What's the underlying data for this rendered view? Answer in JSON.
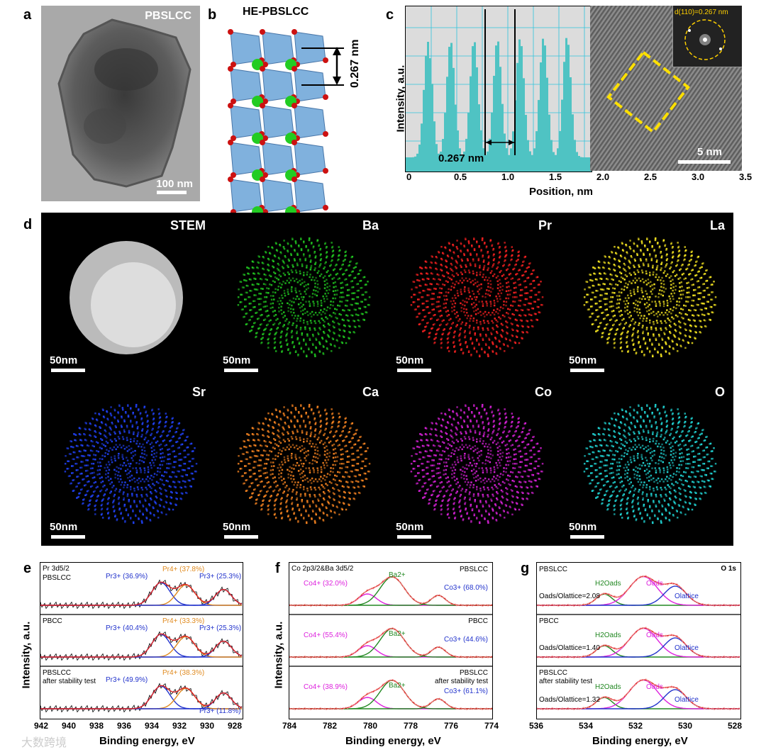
{
  "panels": {
    "a": {
      "label": "a",
      "sample": "PBSLCC",
      "scalebar": "100 nm"
    },
    "b": {
      "label": "b",
      "title": "HE-PBSLCC",
      "spacing": "0.267 nm"
    },
    "c": {
      "label": "c",
      "ylabel": "Intensity, a.u.",
      "xlabel": "Position, nm",
      "spacing": "0.267 nm",
      "scalebar": "5 nm",
      "fft": "d(110)=0.267 nm",
      "xticks": [
        "0",
        "0.5",
        "1.0",
        "1.5",
        "2.0",
        "2.5",
        "3.0",
        "3.5"
      ]
    },
    "d": {
      "label": "d",
      "tiles": [
        {
          "name": "STEM",
          "bar": "50nm"
        },
        {
          "name": "Ba",
          "bar": "50nm"
        },
        {
          "name": "Pr",
          "bar": "50nm"
        },
        {
          "name": "La",
          "bar": "50nm"
        },
        {
          "name": "Sr",
          "bar": "50nm"
        },
        {
          "name": "Ca",
          "bar": "50nm"
        },
        {
          "name": "Co",
          "bar": "50nm"
        },
        {
          "name": "O",
          "bar": "50nm"
        }
      ]
    },
    "e": {
      "label": "e",
      "ylabel": "Intensity, a.u.",
      "xlabel": "Binding energy, eV",
      "core": "Pr 3d5/2",
      "xticks": [
        "942",
        "940",
        "938",
        "936",
        "934",
        "932",
        "930",
        "928"
      ],
      "rows": [
        {
          "sample": "PBSLCC",
          "sub": "",
          "p1": "Pr3+ (36.9%)",
          "p2": "Pr4+ (37.8%)",
          "p3": "Pr3+ (25.3%)"
        },
        {
          "sample": "PBCC",
          "sub": "",
          "p1": "Pr3+ (40.4%)",
          "p2": "Pr4+ (33.3%)",
          "p3": "Pr3+ (25.3%)"
        },
        {
          "sample": "PBSLCC",
          "sub": "after stability test",
          "p1": "Pr3+ (49.9%)",
          "p2": "Pr4+ (38.3%)",
          "p3": "Pr3+ (11.8%)"
        }
      ]
    },
    "f": {
      "label": "f",
      "ylabel": "Intensity, a.u.",
      "xlabel": "Binding energy, eV",
      "core": "Co 2p3/2&Ba 3d5/2",
      "xticks": [
        "784",
        "782",
        "780",
        "778",
        "776",
        "774"
      ],
      "rows": [
        {
          "sample": "PBSLCC",
          "sub": "",
          "co4": "Co4+ (32.0%)",
          "ba": "Ba2+",
          "co3": "Co3+ (68.0%)"
        },
        {
          "sample": "PBCC",
          "sub": "",
          "co4": "Co4+ (55.4%)",
          "ba": "Ba2+",
          "co3": "Co3+ (44.6%)"
        },
        {
          "sample": "PBSLCC",
          "sub": "after stability test",
          "co4": "Co4+ (38.9%)",
          "ba": "Ba2+",
          "co3": "Co3+ (61.1%)"
        }
      ]
    },
    "g": {
      "label": "g",
      "xlabel": "Binding energy, eV",
      "core": "O 1s",
      "xticks": [
        "536",
        "534",
        "532",
        "530",
        "528"
      ],
      "rows": [
        {
          "sample": "PBSLCC",
          "sub": "",
          "ratio": "Oads/Olattice=2.08",
          "h2o": "H2Oads",
          "oads": "Oads",
          "olat": "Olattice"
        },
        {
          "sample": "PBCC",
          "sub": "",
          "ratio": "Oads/Olattice=1.40",
          "h2o": "H2Oads",
          "oads": "Oads",
          "olat": "Olattice"
        },
        {
          "sample": "PBSLCC",
          "sub": "after stability test",
          "ratio": "Oads/Olattice=1.32",
          "h2o": "H2Oads",
          "oads": "Oads",
          "olat": "Olattice"
        }
      ]
    }
  },
  "watermark": "大数跨境"
}
